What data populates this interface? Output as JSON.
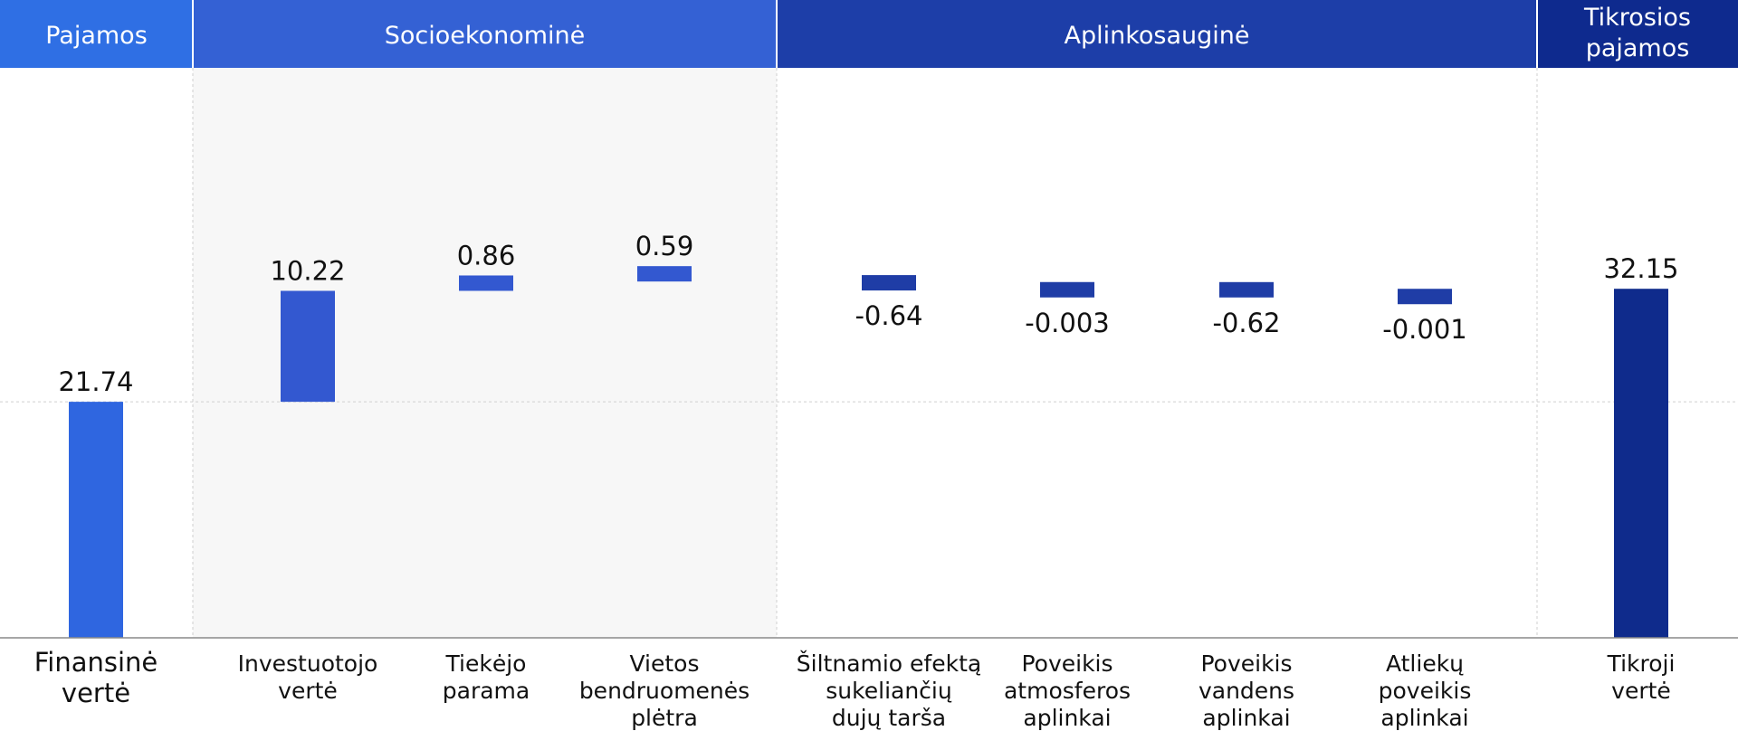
{
  "chart_data": {
    "type": "bar",
    "title": "",
    "xlabel": "",
    "ylabel": "",
    "grid": true,
    "groups": [
      {
        "label": "Pajamos",
        "color": "#2f6fe4",
        "categories": 1
      },
      {
        "label": "Socioekonominė",
        "color": "#3461d4",
        "categories": 3
      },
      {
        "label": "Aplinkosauginė",
        "color": "#1d3ea8",
        "categories": 4
      },
      {
        "label": [
          "Tikrosios",
          "pajamos"
        ],
        "color": "#0e2a8e",
        "categories": 1
      }
    ],
    "categories": [
      [
        "Finansinė",
        "vertė"
      ],
      [
        "Investuotojo",
        "vertė"
      ],
      [
        "Tiekėjo",
        "parama"
      ],
      [
        "Vietos",
        "bendruomenės",
        "plėtra"
      ],
      [
        "Šiltnamio efektą",
        "sukeliančių",
        "dujų tarša"
      ],
      [
        "Poveikis",
        "atmosferos",
        "aplinkai"
      ],
      [
        "Poveikis",
        "vandens",
        "aplinkai"
      ],
      [
        "Atliekų",
        "poveikis",
        "aplinkai"
      ],
      [
        "Tikroji",
        "vertė"
      ]
    ],
    "values": [
      21.74,
      10.22,
      0.86,
      0.59,
      -0.64,
      -0.003,
      -0.62,
      -0.001,
      32.15
    ],
    "value_labels": [
      "21.74",
      "10.22",
      "0.86",
      "0.59",
      "-0.64",
      "-0.003",
      "-0.62",
      "-0.001",
      "32.15"
    ],
    "kind": [
      "total",
      "delta",
      "delta",
      "delta",
      "delta",
      "delta",
      "delta",
      "delta",
      "total"
    ],
    "bar_colors": [
      "#2f66e0",
      "#3358d0",
      "#3358d0",
      "#3358d0",
      "#1f3da6",
      "#1f3da6",
      "#1f3da6",
      "#1f3da6",
      "#0f2b8c"
    ],
    "highlight_group": "Socioekonominė"
  }
}
